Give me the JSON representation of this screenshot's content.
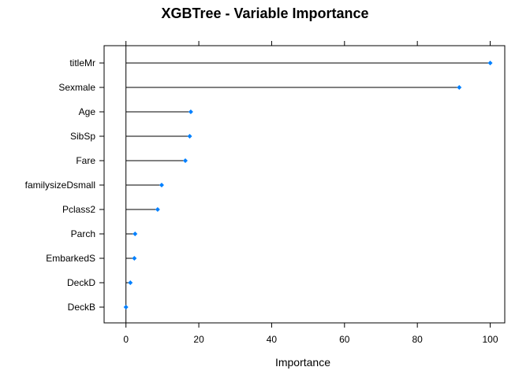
{
  "chart_data": {
    "type": "dot",
    "title": "XGBTree - Variable Importance",
    "xlabel": "Importance",
    "ylabel": "",
    "xlim": [
      -6,
      104
    ],
    "xticks": [
      0,
      20,
      40,
      60,
      80,
      100
    ],
    "categories": [
      "titleMr",
      "Sexmale",
      "Age",
      "SibSp",
      "Fare",
      "familysizeDsmall",
      "Pclass2",
      "Parch",
      "EmbarkedS",
      "DeckD",
      "DeckB"
    ],
    "values": [
      100,
      91.5,
      17.8,
      17.5,
      16.3,
      9.8,
      8.7,
      2.5,
      2.3,
      1.2,
      0
    ],
    "point_color": "#0080ff",
    "line_color": "#000000",
    "grid": false,
    "legend": "none"
  }
}
